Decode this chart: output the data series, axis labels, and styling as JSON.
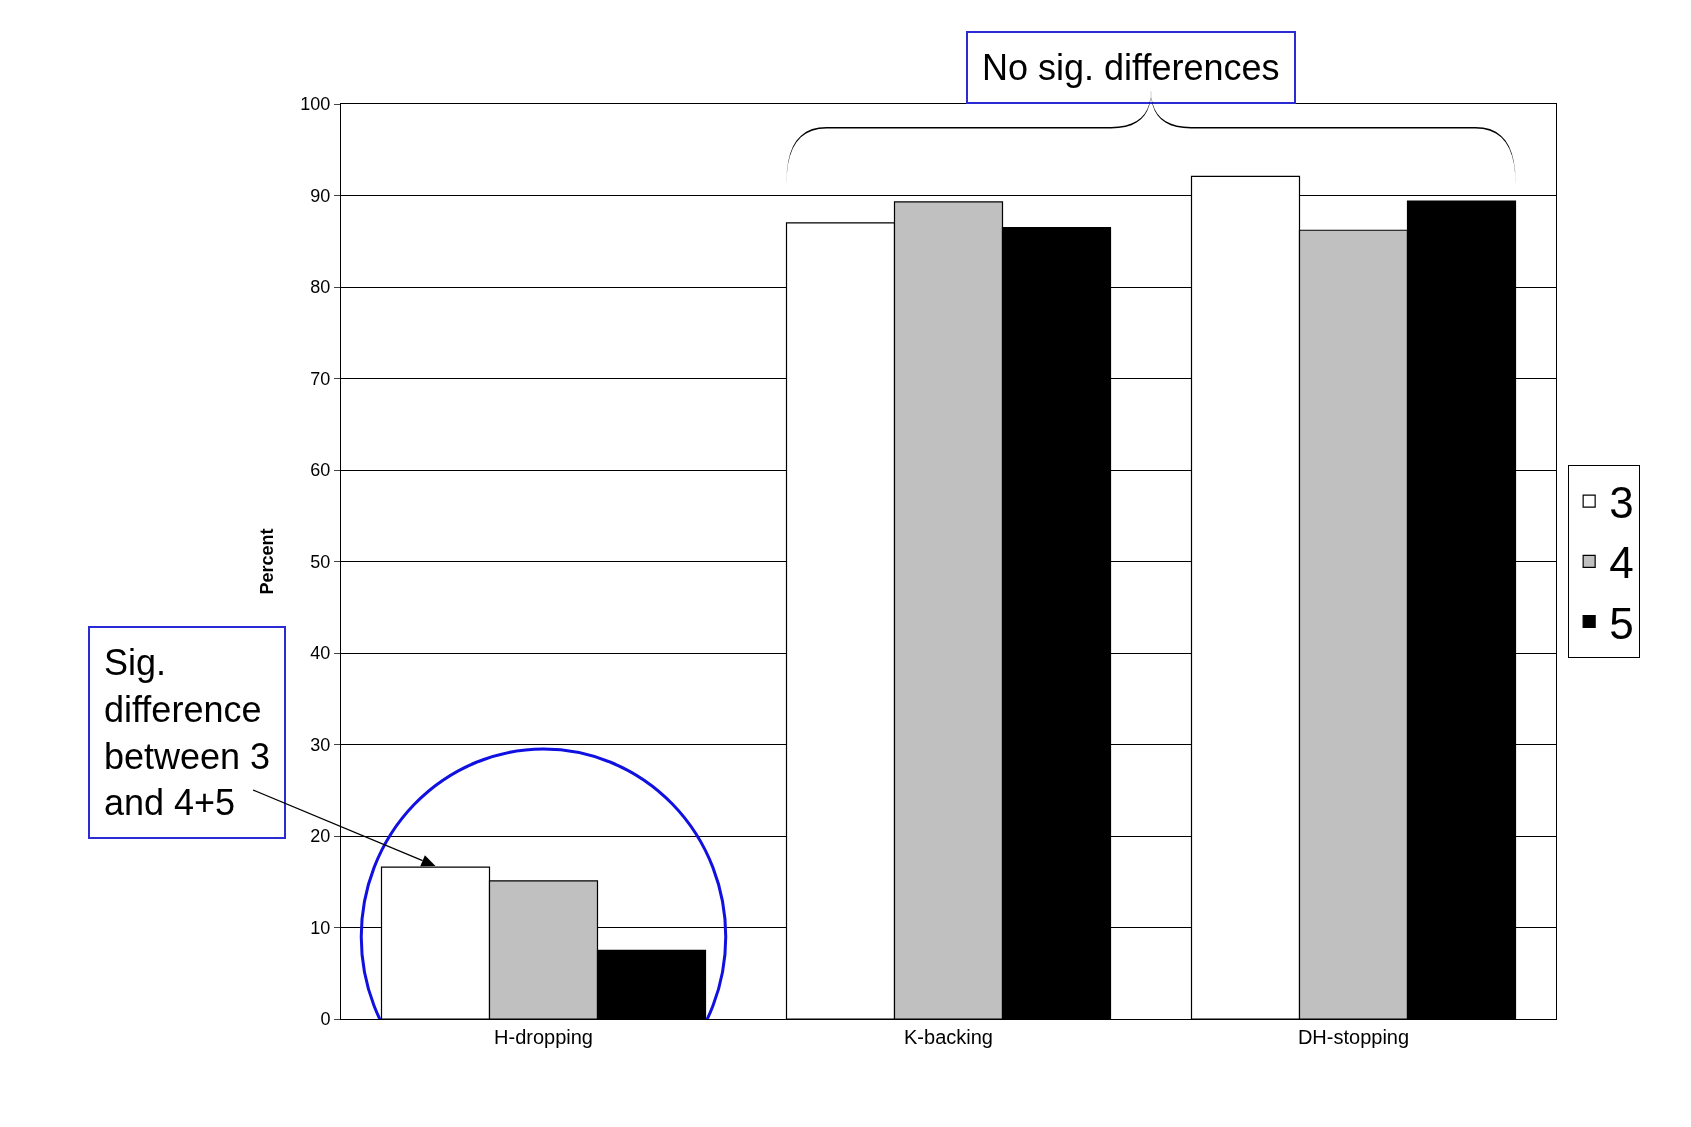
{
  "chart_data": {
    "type": "bar",
    "ylabel": "Percent",
    "categories": [
      "H-dropping",
      "K-backing",
      "DH-stopping"
    ],
    "series": [
      {
        "name": "3",
        "color": "#ffffff",
        "values": [
          16.6,
          87.0,
          92.1
        ]
      },
      {
        "name": "4",
        "color": "#c0c0c0",
        "values": [
          15.1,
          89.3,
          86.2
        ]
      },
      {
        "name": "5",
        "color": "#000000",
        "values": [
          7.5,
          86.5,
          89.4
        ]
      }
    ],
    "ylim": [
      0,
      100
    ],
    "yticks": [
      0,
      10,
      20,
      30,
      40,
      50,
      60,
      70,
      80,
      90,
      100
    ],
    "grid": "y",
    "legend": "right",
    "annotations": [
      "No sig. differences",
      "Sig. difference between 3 and 4+5"
    ]
  }
}
